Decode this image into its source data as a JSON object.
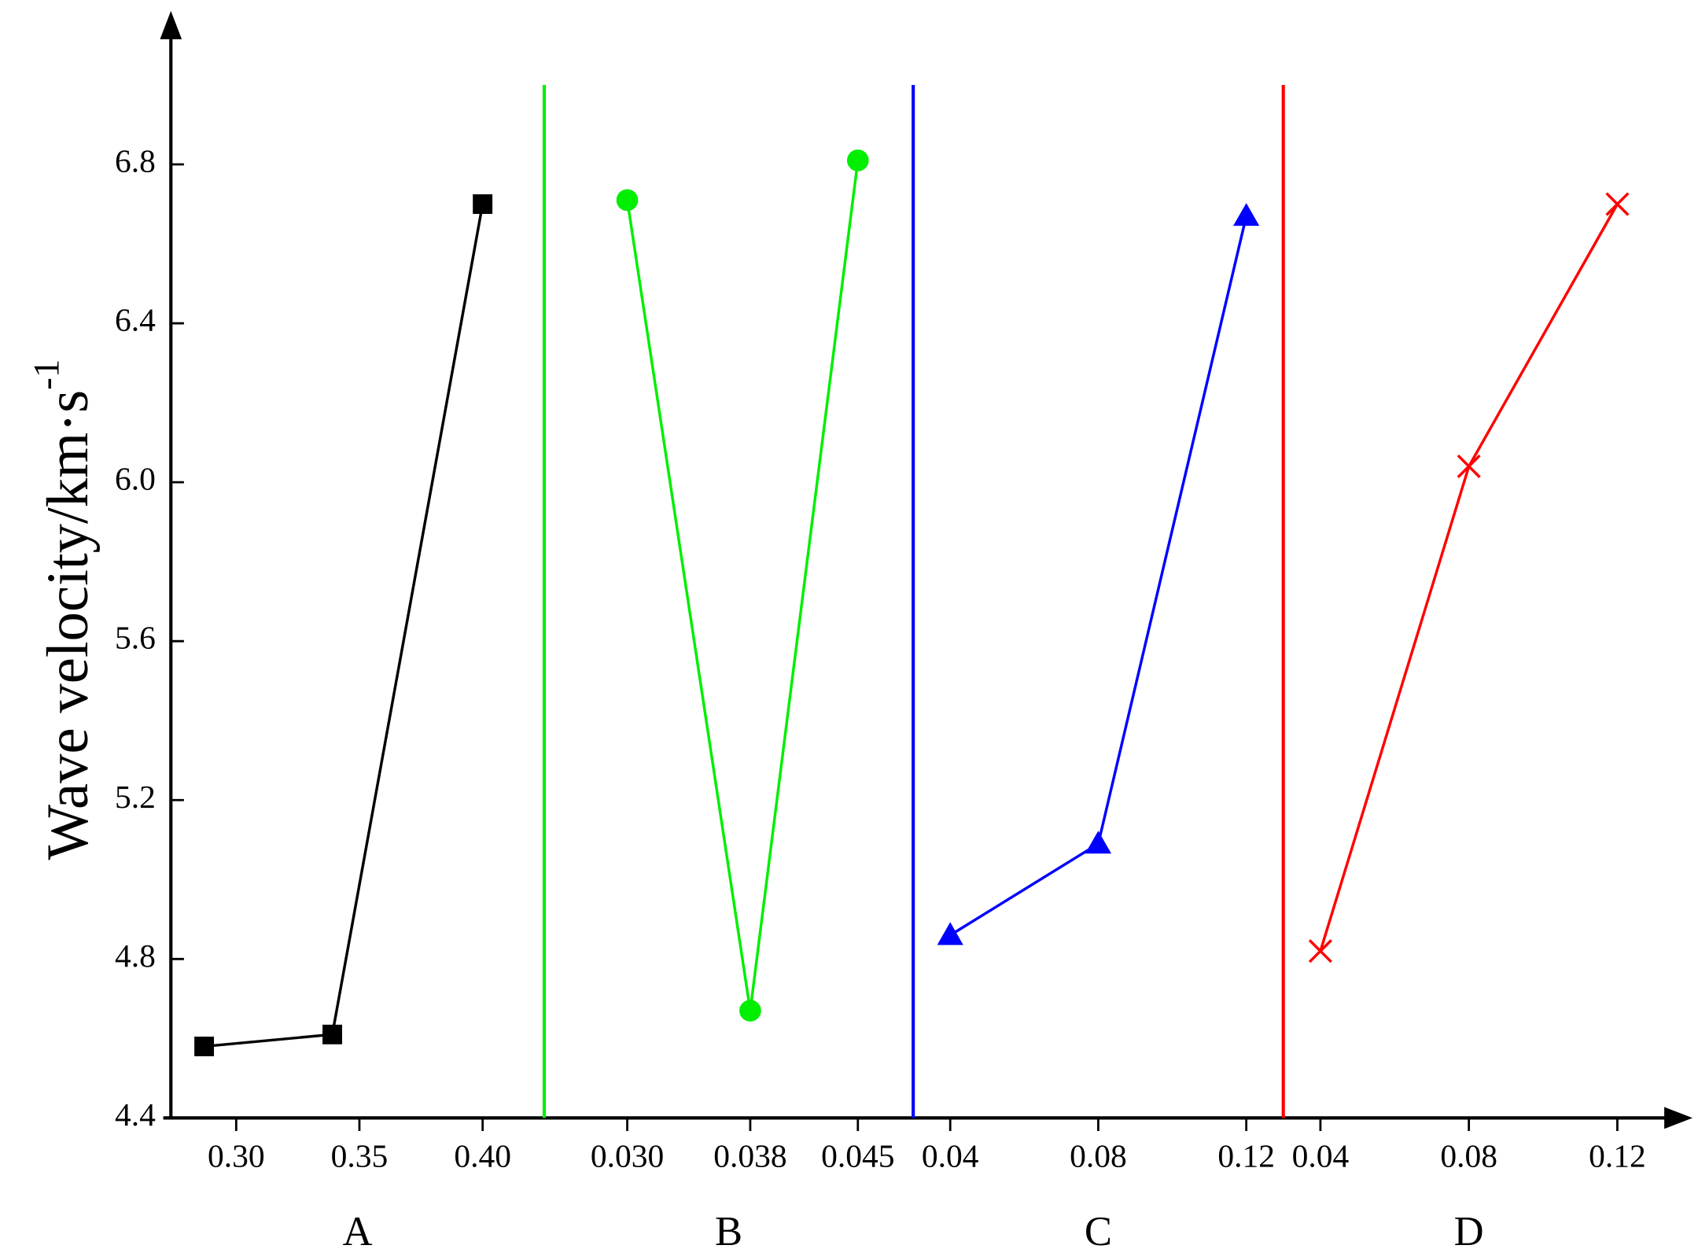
{
  "chart_data": [
    {
      "type": "line",
      "xlabel": "A",
      "color": "#000000",
      "marker": "square",
      "x": [
        0.287,
        0.339,
        0.4
      ],
      "values": [
        4.58,
        4.61,
        6.7
      ],
      "xlim": [
        0.2735,
        0.425
      ],
      "xticks": [
        {
          "value": 0.3,
          "label": "0.30"
        },
        0.35,
        {
          "value": 0.4,
          "label": "0.40"
        }
      ],
      "ylim": [
        4.4,
        7.2
      ],
      "yticks": [
        4.4,
        4.8,
        5.2,
        5.6,
        {
          "value": 6,
          "label": "6.0"
        },
        6.4,
        6.8
      ],
      "ylabel": "Wave velocity/km·s",
      "ylabel_superscript": "-1"
    },
    {
      "type": "line",
      "xlabel": "B",
      "color": "#00ee00",
      "marker": "circle",
      "x": [
        0.03,
        0.038,
        0.045
      ],
      "values": [
        6.71,
        4.67,
        6.81
      ],
      "xlim": [
        0.0246,
        0.0486
      ],
      "xticks": [
        {
          "value": 0.03,
          "label": "0.030"
        },
        0.038,
        0.045
      ],
      "ylim": [
        4.4,
        7.2
      ]
    },
    {
      "type": "line",
      "xlabel": "C",
      "color": "#0000ff",
      "marker": "triangle",
      "x": [
        0.04,
        0.08,
        0.12
      ],
      "values": [
        4.86,
        5.09,
        6.67
      ],
      "xlim": [
        0.03,
        0.13
      ],
      "xticks": [
        0.04,
        0.08,
        0.12
      ],
      "ylim": [
        4.4,
        7.2
      ]
    },
    {
      "type": "line",
      "xlabel": "D",
      "color": "#ff0000",
      "marker": "cross",
      "x": [
        0.04,
        0.08,
        0.12
      ],
      "values": [
        4.82,
        6.04,
        6.7
      ],
      "xlim": [
        0.03,
        0.13
      ],
      "xticks": [
        0.04,
        0.08,
        0.12
      ],
      "ylim": [
        4.4,
        7.2
      ]
    }
  ]
}
